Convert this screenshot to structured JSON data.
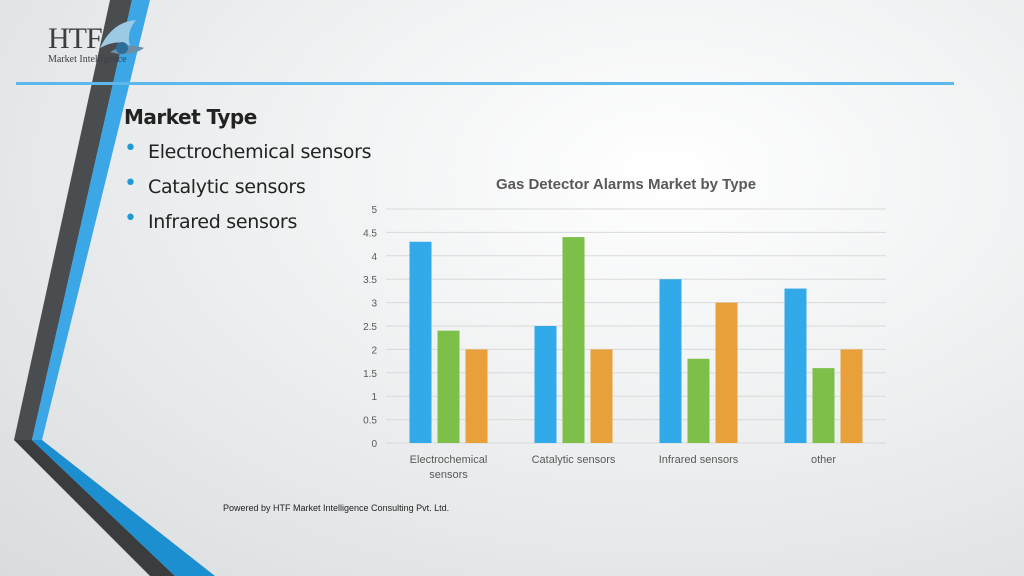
{
  "logo": {
    "text": "HTF",
    "subtext": "Market Intelligence"
  },
  "section": {
    "title": "Market Type",
    "bullets": [
      "Electrochemical sensors",
      "Catalytic sensors",
      "Infrared sensors"
    ]
  },
  "footer": "Powered by HTF Market Intelligence Consulting Pvt. Ltd.",
  "colors": {
    "blue": "#32aaea",
    "green": "#7cc04a",
    "orange": "#e8a13a",
    "accent": "#5cb8ea"
  },
  "chart_data": {
    "type": "bar",
    "title": "Gas Detector Alarms Market by Type",
    "categories": [
      [
        "Electrochemical",
        "sensors"
      ],
      [
        "Catalytic sensors"
      ],
      [
        "Infrared sensors"
      ],
      [
        "other"
      ]
    ],
    "series": [
      {
        "values": [
          4.3,
          2.5,
          3.5,
          3.3
        ]
      },
      {
        "values": [
          2.4,
          4.4,
          1.8,
          1.6
        ]
      },
      {
        "values": [
          2.0,
          2.0,
          3.0,
          2.0
        ]
      }
    ],
    "ylim": [
      0,
      5
    ],
    "yticks": [
      "0",
      "0.5",
      "1",
      "1.5",
      "2",
      "2.5",
      "3",
      "3.5",
      "4",
      "4.5",
      "5"
    ],
    "grid": true,
    "xlabel": "",
    "ylabel": ""
  }
}
